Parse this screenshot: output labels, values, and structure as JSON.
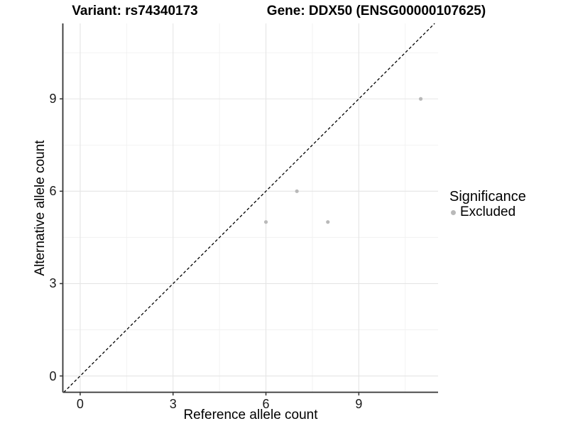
{
  "titles": {
    "variant": "Variant: rs74340173",
    "gene": "Gene: DDX50 (ENSG00000107625)"
  },
  "chart_data": {
    "type": "scatter",
    "xlabel": "Reference allele count",
    "ylabel": "Alternative allele count",
    "xlim": [
      -0.56,
      11.56
    ],
    "ylim": [
      -0.53,
      11.45
    ],
    "x_ticks": [
      0,
      3,
      6,
      9
    ],
    "y_ticks": [
      0,
      3,
      6,
      9
    ],
    "x_minor_gridlines": [
      1.5,
      4.5,
      7.5,
      10.5
    ],
    "y_minor_gridlines": [
      1.5,
      4.5,
      7.5,
      10.5
    ],
    "grid": true,
    "identity_line": {
      "slope": 1,
      "intercept": 0,
      "style": "dashed",
      "color": "#000000"
    },
    "series": [
      {
        "name": "Excluded",
        "color": "#b9b9b9",
        "points": [
          [
            6,
            5
          ],
          [
            7,
            6
          ],
          [
            8,
            5
          ],
          [
            11,
            9
          ]
        ]
      }
    ],
    "legend": {
      "title": "Significance",
      "position": "right",
      "entries": [
        {
          "label": "Excluded",
          "color": "#b9b9b9",
          "marker": "circle-icon"
        }
      ]
    }
  },
  "colors": {
    "background": "#ffffff",
    "grid_major": "#e5e5e5",
    "grid_minor": "#f1f1f1",
    "axis_line": "#333333",
    "point": "#b9b9b9"
  }
}
